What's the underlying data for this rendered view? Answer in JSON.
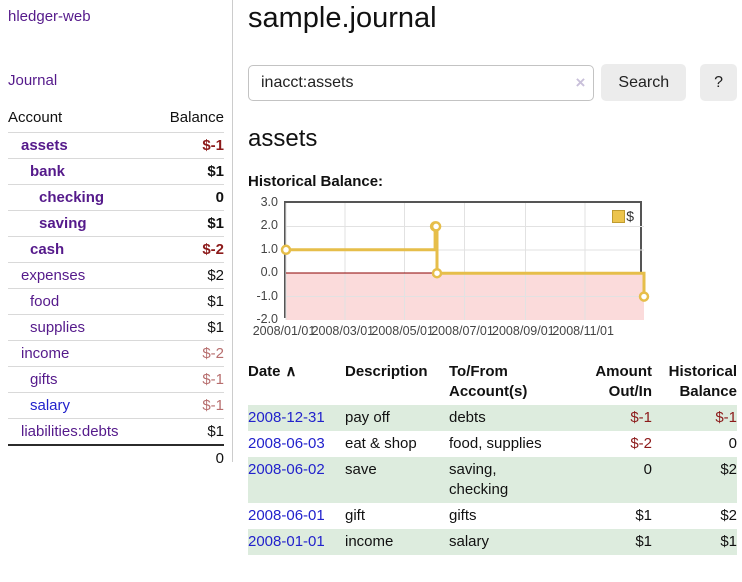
{
  "app": {
    "brand": "hledger-web",
    "nav": {
      "journal": "Journal"
    }
  },
  "sidebar": {
    "columns": {
      "account": "Account",
      "balance": "Balance"
    },
    "accounts": [
      {
        "name": "assets",
        "depth": 1,
        "balance": "$-1",
        "bold": true,
        "balance_tone": "neg-strong",
        "link_tone": "purple"
      },
      {
        "name": "bank",
        "depth": 2,
        "balance": "$1",
        "bold": true,
        "balance_tone": "pos",
        "link_tone": "purple"
      },
      {
        "name": "checking",
        "depth": 3,
        "balance": "0",
        "bold": true,
        "balance_tone": "pos",
        "link_tone": "purple"
      },
      {
        "name": "saving",
        "depth": 3,
        "balance": "$1",
        "bold": true,
        "balance_tone": "pos",
        "link_tone": "purple"
      },
      {
        "name": "cash",
        "depth": 2,
        "balance": "$-2",
        "bold": true,
        "balance_tone": "neg-strong",
        "link_tone": "purple"
      },
      {
        "name": "expenses",
        "depth": 1,
        "balance": "$2",
        "bold": false,
        "balance_tone": "pos",
        "link_tone": "purple"
      },
      {
        "name": "food",
        "depth": 2,
        "balance": "$1",
        "bold": false,
        "balance_tone": "pos",
        "link_tone": "purple"
      },
      {
        "name": "supplies",
        "depth": 2,
        "balance": "$1",
        "bold": false,
        "balance_tone": "pos",
        "link_tone": "purple"
      },
      {
        "name": "income",
        "depth": 1,
        "balance": "$-2",
        "bold": false,
        "balance_tone": "neg-weak",
        "link_tone": "purple"
      },
      {
        "name": "gifts",
        "depth": 2,
        "balance": "$-1",
        "bold": false,
        "balance_tone": "neg-weak",
        "link_tone": "purple"
      },
      {
        "name": "salary",
        "depth": 2,
        "balance": "$-1",
        "bold": false,
        "balance_tone": "neg-weak",
        "link_tone": "blue"
      },
      {
        "name": "liabilities:debts",
        "depth": 1,
        "balance": "$1",
        "bold": false,
        "balance_tone": "pos",
        "link_tone": "purple"
      }
    ],
    "total": "0"
  },
  "main": {
    "title": "sample.journal",
    "search": {
      "value": "inacct:assets",
      "clear": "×",
      "search_label": "Search",
      "help_label": "?"
    },
    "account_heading": "assets",
    "chart_heading": "Historical Balance:"
  },
  "register": {
    "columns": [
      {
        "label": "Date",
        "sort": "∧",
        "align": "left"
      },
      {
        "label": "Description",
        "align": "left"
      },
      {
        "label": "To/From\nAccount(s)",
        "align": "left"
      },
      {
        "label": "Amount\nOut/In",
        "align": "right"
      },
      {
        "label": "Historical\nBalance",
        "align": "right"
      }
    ],
    "rows": [
      {
        "date": "2008-12-31",
        "description": "pay off",
        "accounts": "debts",
        "amount": "$-1",
        "amount_neg": true,
        "balance": "$-1",
        "balance_neg": true
      },
      {
        "date": "2008-06-03",
        "description": "eat & shop",
        "accounts": "food, supplies",
        "amount": "$-2",
        "amount_neg": true,
        "balance": "0",
        "balance_neg": false
      },
      {
        "date": "2008-06-02",
        "description": "save",
        "accounts": "saving,\nchecking",
        "amount": "0",
        "amount_neg": false,
        "balance": "$2",
        "balance_neg": false
      },
      {
        "date": "2008-06-01",
        "description": "gift",
        "accounts": "gifts",
        "amount": "$1",
        "amount_neg": false,
        "balance": "$2",
        "balance_neg": false
      },
      {
        "date": "2008-01-01",
        "description": "income",
        "accounts": "salary",
        "amount": "$1",
        "amount_neg": false,
        "balance": "$1",
        "balance_neg": false
      }
    ]
  },
  "chart_data": {
    "type": "line",
    "title": "Historical Balance",
    "step": true,
    "x_range": [
      "2008-01-01",
      "2008-12-31"
    ],
    "ylim": [
      -2,
      3
    ],
    "yticks": [
      3.0,
      2.0,
      1.0,
      0.0,
      -1.0,
      -2.0
    ],
    "ytick_labels": [
      "3.0",
      "2.0",
      "1.0",
      "0.0",
      "-1.0",
      "-2.0"
    ],
    "xtick_dates": [
      "2008-01-01",
      "2008-03-01",
      "2008-05-01",
      "2008-07-01",
      "2008-09-01",
      "2008-11-01"
    ],
    "xtick_labels": [
      "2008/01/01",
      "2008/03/01",
      "2008/05/01",
      "2008/07/01",
      "2008/09/01",
      "2008/11/01"
    ],
    "series": [
      {
        "name": "$",
        "points": [
          [
            "2008-01-01",
            1
          ],
          [
            "2008-06-01",
            2
          ],
          [
            "2008-06-02",
            2
          ],
          [
            "2008-06-03",
            0
          ],
          [
            "2008-12-31",
            -1
          ]
        ]
      }
    ],
    "legend": [
      {
        "label": "$",
        "color": "#ecc44d"
      }
    ],
    "legend_position": "top-right",
    "grid": true,
    "colors": {
      "line": "#e6be4a",
      "marker_fill": "#ffffff",
      "negative_fill": "#fbdbdb",
      "zero_line": "#8b0000",
      "grid": "#e2e2e2",
      "border": "#555555"
    }
  }
}
